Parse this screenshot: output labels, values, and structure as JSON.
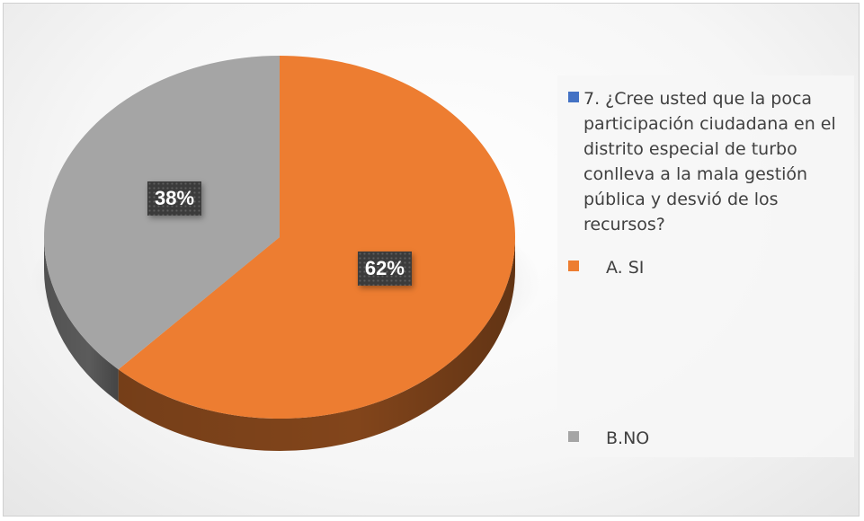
{
  "chart_data": {
    "type": "pie",
    "title": "",
    "categories": [
      "A. SI",
      "B.NO"
    ],
    "values": [
      62,
      38
    ],
    "units": "%",
    "data_labels": [
      "62%",
      "38%"
    ],
    "colors": [
      "#ED7D31",
      "#A5A5A5"
    ],
    "legend_placement": "right",
    "legend": {
      "title_entry": {
        "text": "7. ¿Cree usted que la poca participación ciudadana en el distrito especial de turbo conlleva a la mala gestión pública y desvió de los recursos?",
        "color": "#4472C4"
      },
      "entries": [
        {
          "label": "A. SI",
          "color": "#ED7D31"
        },
        {
          "label": "B.NO",
          "color": "#A5A5A5"
        }
      ]
    }
  }
}
